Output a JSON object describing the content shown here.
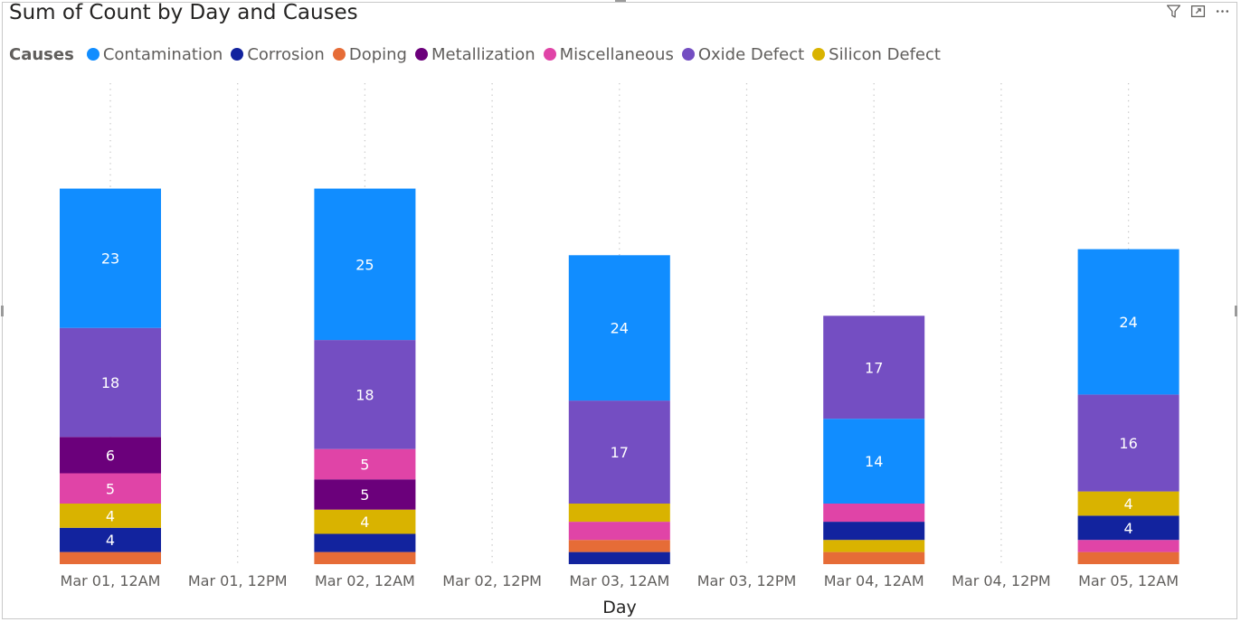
{
  "chart_data": {
    "type": "bar",
    "stacked": true,
    "title": "Sum of Count by Day and Causes",
    "xlabel": "Day",
    "ylabel": "",
    "ylim": [
      0,
      70
    ],
    "grid": "vertical-dotted",
    "legend": {
      "title": "Causes",
      "placement": "top-left"
    },
    "x_ticks": [
      "Mar 01, 12AM",
      "Mar 01, 12PM",
      "Mar 02, 12AM",
      "Mar 02, 12PM",
      "Mar 03, 12AM",
      "Mar 03, 12PM",
      "Mar 04, 12AM",
      "Mar 04, 12PM",
      "Mar 05, 12AM"
    ],
    "categories": [
      "Mar 01, 12AM",
      "Mar 02, 12AM",
      "Mar 03, 12AM",
      "Mar 04, 12AM",
      "Mar 05, 12AM"
    ],
    "series": [
      {
        "name": "Contamination",
        "color": "#118DFF",
        "values": [
          23,
          25,
          24,
          14,
          24
        ]
      },
      {
        "name": "Corrosion",
        "color": "#12239E",
        "values": [
          4,
          3,
          2,
          3,
          4
        ]
      },
      {
        "name": "Doping",
        "color": "#E66C37",
        "values": [
          2,
          2,
          2,
          2,
          2
        ]
      },
      {
        "name": "Metallization",
        "color": "#6B007B",
        "values": [
          6,
          5,
          0,
          0,
          0
        ]
      },
      {
        "name": "Miscellaneous",
        "color": "#E044A7",
        "values": [
          5,
          5,
          3,
          3,
          2
        ]
      },
      {
        "name": "Oxide Defect",
        "color": "#744EC2",
        "values": [
          18,
          18,
          17,
          17,
          16
        ]
      },
      {
        "name": "Silicon Defect",
        "color": "#D9B300",
        "values": [
          4,
          4,
          3,
          2,
          4
        ]
      }
    ],
    "stack_order": [
      [
        "Doping",
        "Corrosion",
        "Silicon Defect",
        "Miscellaneous",
        "Metallization",
        "Oxide Defect",
        "Contamination"
      ],
      [
        "Doping",
        "Corrosion",
        "Silicon Defect",
        "Metallization",
        "Miscellaneous",
        "Oxide Defect",
        "Contamination"
      ],
      [
        "Corrosion",
        "Doping",
        "Miscellaneous",
        "Silicon Defect",
        "Oxide Defect",
        "Contamination"
      ],
      [
        "Doping",
        "Silicon Defect",
        "Corrosion",
        "Miscellaneous",
        "Contamination",
        "Oxide Defect"
      ],
      [
        "Doping",
        "Miscellaneous",
        "Corrosion",
        "Silicon Defect",
        "Oxide Defect",
        "Contamination"
      ]
    ],
    "data_labels_min": 4
  },
  "toolbar": {
    "filter_icon": "filter-icon",
    "focus_icon": "focus-mode-icon",
    "more_icon": "more-options-icon"
  }
}
